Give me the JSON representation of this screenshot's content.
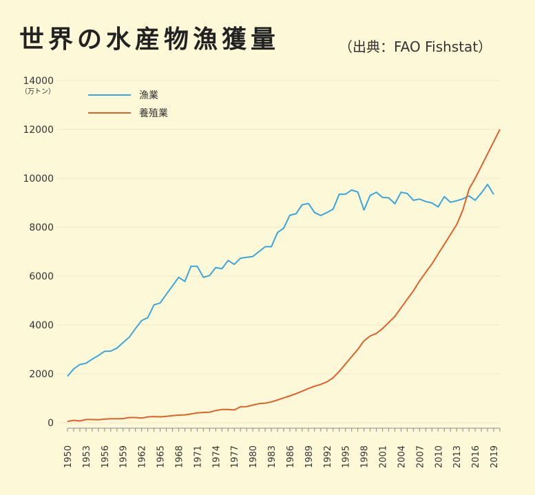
{
  "title": "世界の水産物漁獲量",
  "source": "（出典：FAO Fishstat）",
  "colors": {
    "background": "#fdf8d8",
    "fishery": "#3aa5dc",
    "aquaculture": "#e0602a",
    "grid": "#ece8c8"
  },
  "chart_data": {
    "type": "line",
    "title": "世界の水産物漁獲量",
    "ylabel": "（万トン）",
    "ylim": [
      0,
      14000
    ],
    "yticks": [
      0,
      2000,
      4000,
      6000,
      8000,
      10000,
      12000,
      14000
    ],
    "xticks": [
      1950,
      1953,
      1956,
      1959,
      1962,
      1965,
      1968,
      1971,
      1974,
      1977,
      1980,
      1983,
      1986,
      1989,
      1992,
      1995,
      1998,
      2001,
      2004,
      2007,
      2010,
      2013,
      2016,
      2019
    ],
    "xlim": [
      1950,
      2020
    ],
    "grid": true,
    "legend": "top-left",
    "series": [
      {
        "name": "漁業",
        "color": "#3aa5dc",
        "x": [
          1950,
          1951,
          1952,
          1953,
          1954,
          1955,
          1956,
          1957,
          1958,
          1959,
          1960,
          1961,
          1962,
          1963,
          1964,
          1965,
          1966,
          1967,
          1968,
          1969,
          1970,
          1971,
          1972,
          1973,
          1974,
          1975,
          1976,
          1977,
          1978,
          1979,
          1980,
          1981,
          1982,
          1983,
          1984,
          1985,
          1986,
          1987,
          1988,
          1989,
          1990,
          1991,
          1992,
          1993,
          1994,
          1995,
          1996,
          1997,
          1998,
          1999,
          2000,
          2001,
          2002,
          2003,
          2004,
          2005,
          2006,
          2007,
          2008,
          2009,
          2010,
          2011,
          2012,
          2013,
          2014,
          2015,
          2016,
          2017,
          2018,
          2019,
          2020
        ],
        "values": [
          1900,
          2200,
          2380,
          2430,
          2600,
          2750,
          2920,
          2930,
          3050,
          3280,
          3500,
          3850,
          4180,
          4300,
          4820,
          4900,
          5250,
          5600,
          5950,
          5780,
          6400,
          6400,
          5950,
          6020,
          6350,
          6300,
          6640,
          6480,
          6730,
          6770,
          6800,
          7000,
          7200,
          7200,
          7780,
          7960,
          8490,
          8550,
          8920,
          8970,
          8600,
          8480,
          8600,
          8740,
          9350,
          9350,
          9520,
          9440,
          8700,
          9300,
          9430,
          9220,
          9200,
          8960,
          9430,
          9380,
          9100,
          9150,
          9050,
          8990,
          8830,
          9250,
          9020,
          9080,
          9160,
          9280,
          9100,
          9400,
          9750,
          9340,
          null
        ]
      },
      {
        "name": "養殖業",
        "color": "#e0602a",
        "x": [
          1950,
          1951,
          1952,
          1953,
          1954,
          1955,
          1956,
          1957,
          1958,
          1959,
          1960,
          1961,
          1962,
          1963,
          1964,
          1965,
          1966,
          1967,
          1968,
          1969,
          1970,
          1971,
          1972,
          1973,
          1974,
          1975,
          1976,
          1977,
          1978,
          1979,
          1980,
          1981,
          1982,
          1983,
          1984,
          1985,
          1986,
          1987,
          1988,
          1989,
          1990,
          1991,
          1992,
          1993,
          1994,
          1995,
          1996,
          1997,
          1998,
          1999,
          2000,
          2001,
          2002,
          2003,
          2004,
          2005,
          2006,
          2007,
          2008,
          2009,
          2010,
          2011,
          2012,
          2013,
          2014,
          2015,
          2016,
          2017,
          2018,
          2019,
          2020
        ],
        "values": [
          50,
          100,
          70,
          130,
          130,
          120,
          150,
          160,
          160,
          170,
          210,
          210,
          190,
          240,
          250,
          240,
          260,
          290,
          310,
          320,
          360,
          400,
          420,
          430,
          500,
          540,
          540,
          520,
          650,
          660,
          720,
          780,
          800,
          850,
          930,
          1010,
          1100,
          1190,
          1290,
          1400,
          1490,
          1570,
          1670,
          1840,
          2100,
          2400,
          2700,
          3000,
          3350,
          3550,
          3650,
          3850,
          4100,
          4350,
          4700,
          5050,
          5400,
          5800,
          6150,
          6500,
          6900,
          7300,
          7700,
          8100,
          8700,
          9550,
          10000,
          10500,
          11000,
          11500,
          12000
        ]
      }
    ]
  }
}
